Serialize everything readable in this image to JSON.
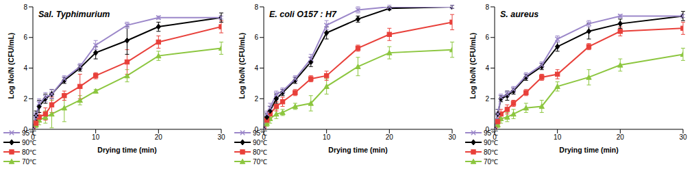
{
  "chart_data": [
    {
      "type": "line",
      "title": "Sal. Typhimurium",
      "x_label": "Drying time (min)",
      "y_label": "Log No/N (CFU/mL)",
      "x": [
        0,
        0.5,
        1,
        2,
        3,
        5,
        7.5,
        10,
        15,
        20,
        30
      ],
      "xlim": [
        0,
        30
      ],
      "xticks": [
        0,
        10,
        20,
        30
      ],
      "ylim": [
        0,
        8
      ],
      "yticks": [
        0,
        2,
        4,
        6,
        8
      ],
      "grid": false,
      "legend": "lower right",
      "series": [
        {
          "name": "95℃",
          "color": "#9b87c9",
          "marker": "x",
          "values": [
            0,
            0.9,
            1.7,
            2.1,
            2.3,
            3.3,
            4.1,
            5.5,
            6.8,
            7.3,
            7.3
          ],
          "errors": [
            0,
            0.2,
            0.3,
            0.3,
            0.3,
            0.2,
            0.2,
            0.3,
            0.2,
            0.1,
            0.1
          ]
        },
        {
          "name": "90℃",
          "color": "#000000",
          "marker": "diamond",
          "values": [
            0,
            0.9,
            1.5,
            2.0,
            2.3,
            3.2,
            4.0,
            5.0,
            5.8,
            6.7,
            7.3
          ],
          "errors": [
            0,
            0.3,
            0.4,
            0.3,
            0.3,
            0.2,
            0.2,
            0.4,
            0.9,
            0.3,
            0.3
          ]
        },
        {
          "name": "80℃",
          "color": "#e8403a",
          "marker": "square",
          "values": [
            0,
            0.4,
            0.8,
            1.0,
            1.6,
            2.2,
            2.8,
            3.5,
            4.4,
            5.7,
            6.7
          ],
          "errors": [
            0,
            0.2,
            0.3,
            0.4,
            0.5,
            0.3,
            0.8,
            0.2,
            0.8,
            0.4,
            0.4
          ]
        },
        {
          "name": "70℃",
          "color": "#8cc63f",
          "marker": "triangle",
          "values": [
            0,
            0.3,
            0.6,
            0.8,
            1.0,
            1.4,
            1.9,
            2.5,
            3.5,
            4.8,
            5.3
          ],
          "errors": [
            0,
            0.2,
            0.3,
            0.4,
            0.9,
            0.9,
            0.3,
            0.1,
            0.4,
            0.3,
            0.4
          ]
        }
      ]
    },
    {
      "type": "line",
      "title": "E. coli O157 : H7",
      "x_label": "Drying time (min)",
      "y_label": "Log No/N (CFU/mL)",
      "x": [
        0,
        0.5,
        1,
        2,
        3,
        5,
        7.5,
        10,
        15,
        20,
        30
      ],
      "xlim": [
        0,
        30
      ],
      "xticks": [
        0,
        10,
        20,
        30
      ],
      "ylim": [
        0,
        8
      ],
      "yticks": [
        0,
        2,
        4,
        6,
        8
      ],
      "grid": false,
      "legend": "lower right",
      "series": [
        {
          "name": "95℃",
          "color": "#9b87c9",
          "marker": "x",
          "values": [
            0,
            1.0,
            1.4,
            2.3,
            2.5,
            3.3,
            4.6,
            6.8,
            7.8,
            8.0,
            8.0
          ],
          "errors": [
            0,
            0.2,
            0.3,
            0.2,
            0.2,
            0.2,
            0.3,
            0.3,
            0.2,
            0.1,
            0.1
          ]
        },
        {
          "name": "90℃",
          "color": "#000000",
          "marker": "diamond",
          "values": [
            0,
            0.8,
            1.2,
            2.0,
            2.4,
            3.2,
            4.4,
            6.3,
            7.2,
            7.9,
            8.0
          ],
          "errors": [
            0,
            0.2,
            0.3,
            0.3,
            0.2,
            0.2,
            0.3,
            0.4,
            0.2,
            0.1,
            0.1
          ]
        },
        {
          "name": "80℃",
          "color": "#e8403a",
          "marker": "square",
          "values": [
            0,
            0.6,
            1.0,
            1.5,
            1.8,
            2.4,
            3.3,
            3.5,
            5.3,
            6.2,
            7.0
          ],
          "errors": [
            0,
            0.2,
            0.3,
            0.3,
            0.3,
            0.2,
            0.2,
            0.3,
            0.2,
            0.4,
            0.5
          ]
        },
        {
          "name": "70℃",
          "color": "#8cc63f",
          "marker": "triangle",
          "values": [
            0,
            0.4,
            0.7,
            1.0,
            1.1,
            1.5,
            1.7,
            2.8,
            4.1,
            5.0,
            5.2
          ],
          "errors": [
            0,
            0.2,
            0.3,
            0.3,
            0.2,
            0.2,
            0.5,
            0.5,
            0.6,
            0.4,
            0.5
          ]
        }
      ]
    },
    {
      "type": "line",
      "title": "S. aureus",
      "x_label": "Drying time (min)",
      "y_label": "Log No/N (CFU/mL)",
      "x": [
        0,
        0.5,
        1,
        2,
        3,
        5,
        7.5,
        10,
        15,
        20,
        30
      ],
      "xlim": [
        0,
        30
      ],
      "xticks": [
        0,
        10,
        20,
        30
      ],
      "ylim": [
        0,
        8
      ],
      "yticks": [
        0,
        2,
        4,
        6,
        8
      ],
      "grid": false,
      "legend": "lower right",
      "series": [
        {
          "name": "95℃",
          "color": "#9b87c9",
          "marker": "x",
          "values": [
            0,
            1.0,
            2.1,
            2.3,
            2.6,
            3.5,
            4.2,
            5.9,
            6.9,
            7.4,
            7.4
          ],
          "errors": [
            0,
            0.3,
            0.2,
            0.2,
            0.2,
            0.2,
            0.2,
            0.2,
            0.2,
            0.1,
            0.1
          ]
        },
        {
          "name": "90℃",
          "color": "#000000",
          "marker": "diamond",
          "values": [
            0,
            1.0,
            2.0,
            2.2,
            2.5,
            3.4,
            4.1,
            5.4,
            6.4,
            6.9,
            7.4
          ],
          "errors": [
            0,
            0.3,
            0.2,
            0.3,
            0.2,
            0.2,
            0.2,
            0.3,
            0.5,
            0.3,
            0.3
          ]
        },
        {
          "name": "80℃",
          "color": "#e8403a",
          "marker": "square",
          "values": [
            0,
            0.5,
            1.0,
            1.3,
            1.7,
            2.4,
            3.4,
            3.6,
            5.4,
            6.4,
            6.6
          ],
          "errors": [
            0,
            0.2,
            0.3,
            0.3,
            0.2,
            0.2,
            0.2,
            0.3,
            0.2,
            0.3,
            0.4
          ]
        },
        {
          "name": "70℃",
          "color": "#8cc63f",
          "marker": "triangle",
          "values": [
            0,
            0.3,
            0.7,
            0.8,
            1.0,
            1.4,
            1.5,
            2.8,
            3.4,
            4.2,
            4.9
          ],
          "errors": [
            0,
            0.2,
            0.3,
            0.3,
            0.3,
            0.3,
            0.4,
            0.3,
            0.5,
            0.4,
            0.4
          ]
        }
      ]
    }
  ]
}
